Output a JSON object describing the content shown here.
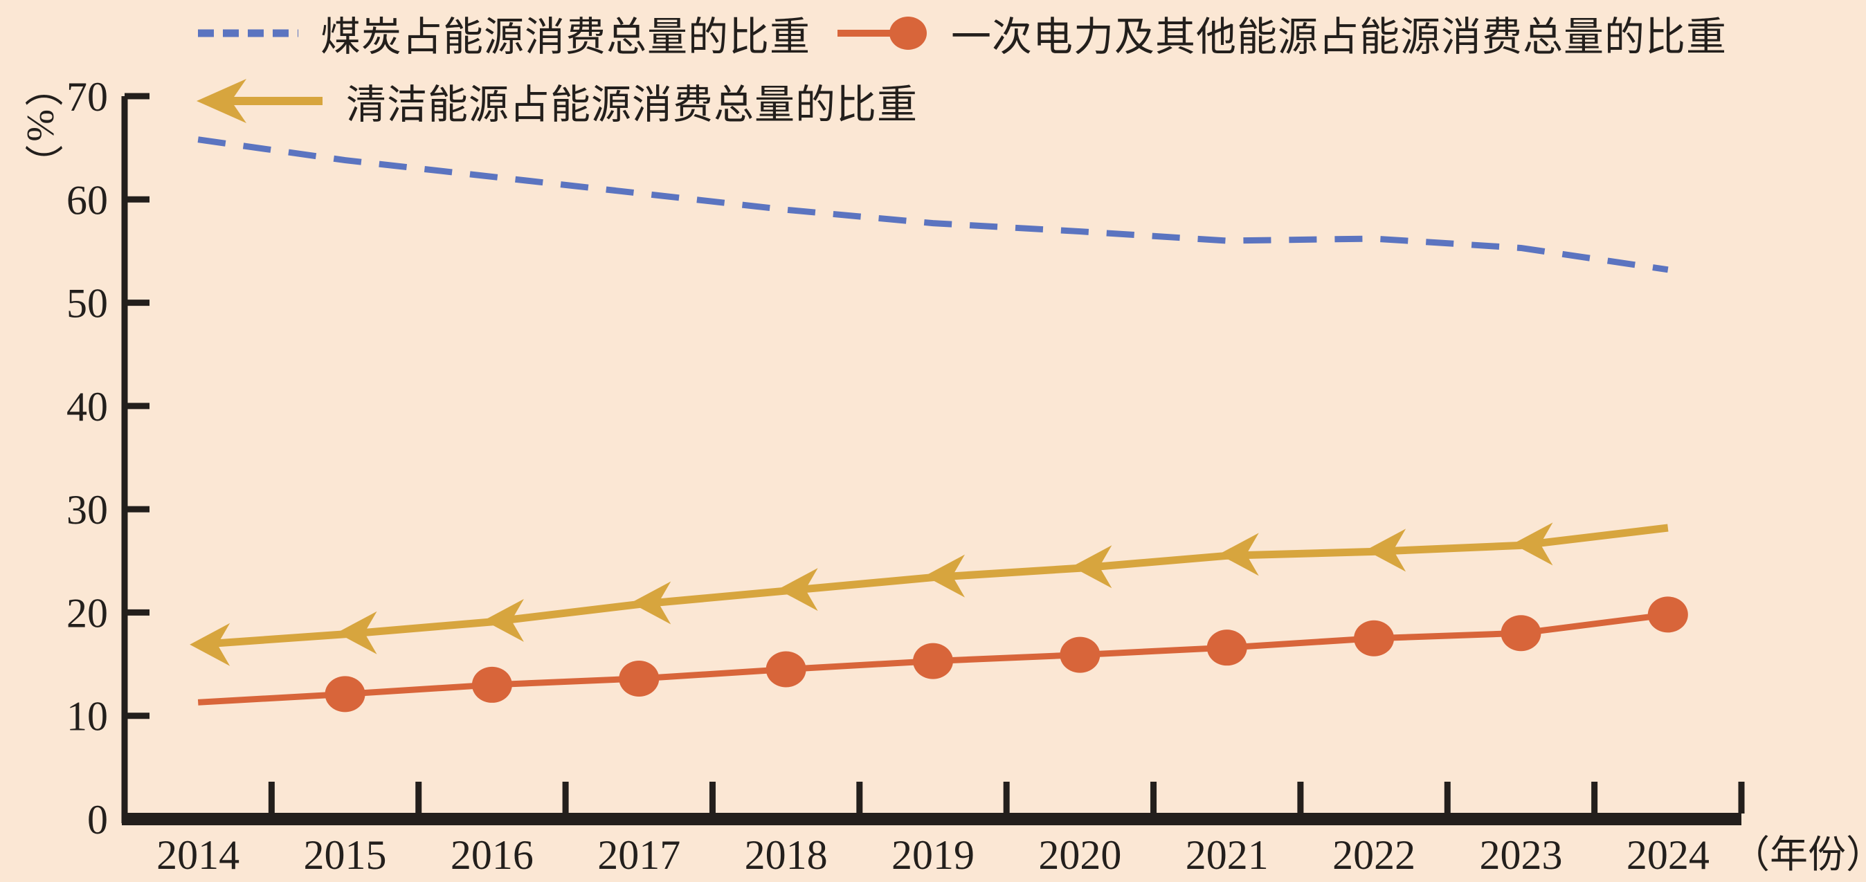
{
  "page": {
    "background": "#fbe7d4",
    "text_color": "#231f1c",
    "axis_color": "#231f1c"
  },
  "legend": {
    "items": [
      {
        "label": "煤炭占能源消费总量的比重"
      },
      {
        "label": "一次电力及其他能源占能源消费总量的比重"
      },
      {
        "label": "清洁能源占能源消费总量的比重"
      }
    ]
  },
  "chart_data": {
    "type": "line",
    "title": "",
    "xlabel": "（年份）",
    "ylabel": "（%）",
    "categories": [
      "2014",
      "2015",
      "2016",
      "2017",
      "2018",
      "2019",
      "2020",
      "2021",
      "2022",
      "2023",
      "2024"
    ],
    "yticks": [
      0,
      10,
      20,
      30,
      40,
      50,
      60,
      70
    ],
    "ylim": [
      0,
      70
    ],
    "grid": false,
    "legend_position": "top-left",
    "series": [
      {
        "name": "煤炭占能源消费总量的比重",
        "color": "#5b74c0",
        "line_style": "dashed",
        "marker": "none",
        "values": [
          65.8,
          63.8,
          62.2,
          60.6,
          59.0,
          57.7,
          56.9,
          56.0,
          56.2,
          55.3,
          53.2
        ]
      },
      {
        "name": "一次电力及其他能源占能源消费总量的比重",
        "color": "#d8653a",
        "line_style": "solid",
        "marker": "circle",
        "values": [
          11.3,
          12.1,
          13.0,
          13.6,
          14.5,
          15.3,
          15.9,
          16.6,
          17.5,
          18.0,
          19.8
        ]
      },
      {
        "name": "清洁能源占能源消费总量的比重",
        "color": "#d7a53e",
        "line_style": "solid",
        "marker": "left-arrow",
        "values": [
          16.9,
          17.9,
          19.1,
          20.8,
          22.1,
          23.4,
          24.3,
          25.5,
          25.9,
          26.5,
          28.2
        ]
      }
    ]
  }
}
